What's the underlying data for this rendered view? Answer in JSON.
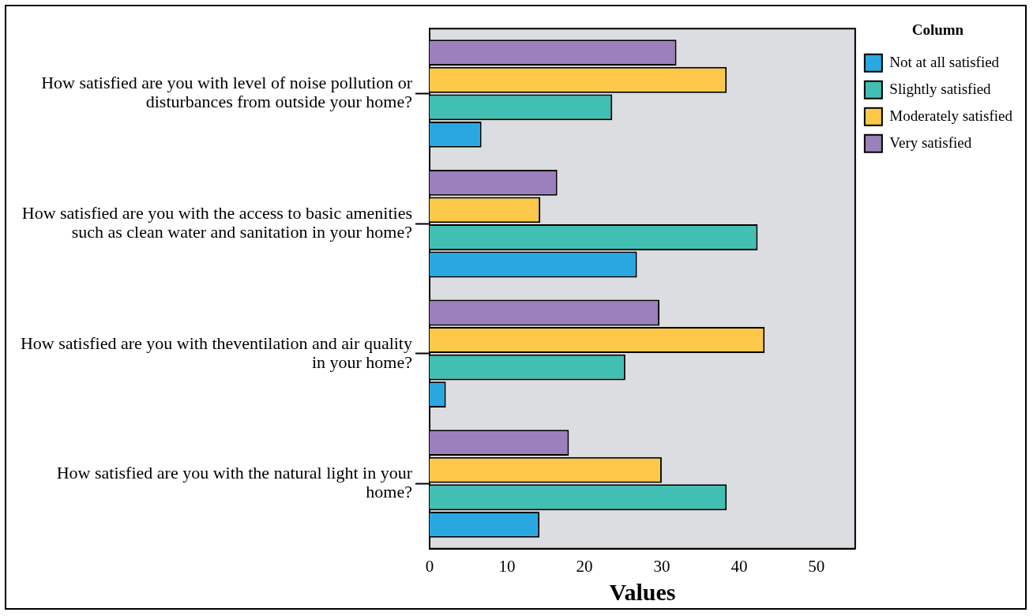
{
  "chart_data": {
    "type": "bar",
    "orientation": "horizontal",
    "xlabel": "Values",
    "legend_title": "Column",
    "legend": "top right",
    "grid": false,
    "categories": [
      "How satisfied are you with level of noise pollution or disturbances from outside your home?",
      "How satisfied are you with the access to basic amenities such as clean water and sanitation in your home?",
      "How satisfied are you with theventilation and air quality in your home?",
      "How satisfied are you with the natural light in your home?"
    ],
    "xlim": [
      0,
      55
    ],
    "xticks": [
      0,
      10,
      20,
      30,
      40,
      50
    ],
    "series": [
      {
        "name": "Not at all satisfied",
        "color": "#29a8e0",
        "values": [
          6.7,
          26.8,
          2.1,
          14.2
        ]
      },
      {
        "name": "Slightly satisfied",
        "color": "#42bfb3",
        "values": [
          23.6,
          42.4,
          25.3,
          38.4
        ]
      },
      {
        "name": "Moderately satisfied",
        "color": "#fdc84a",
        "values": [
          38.4,
          14.3,
          43.3,
          30.0
        ]
      },
      {
        "name": "Very satisfied",
        "color": "#9b80bb",
        "values": [
          31.9,
          16.5,
          29.7,
          18.0
        ]
      }
    ]
  }
}
